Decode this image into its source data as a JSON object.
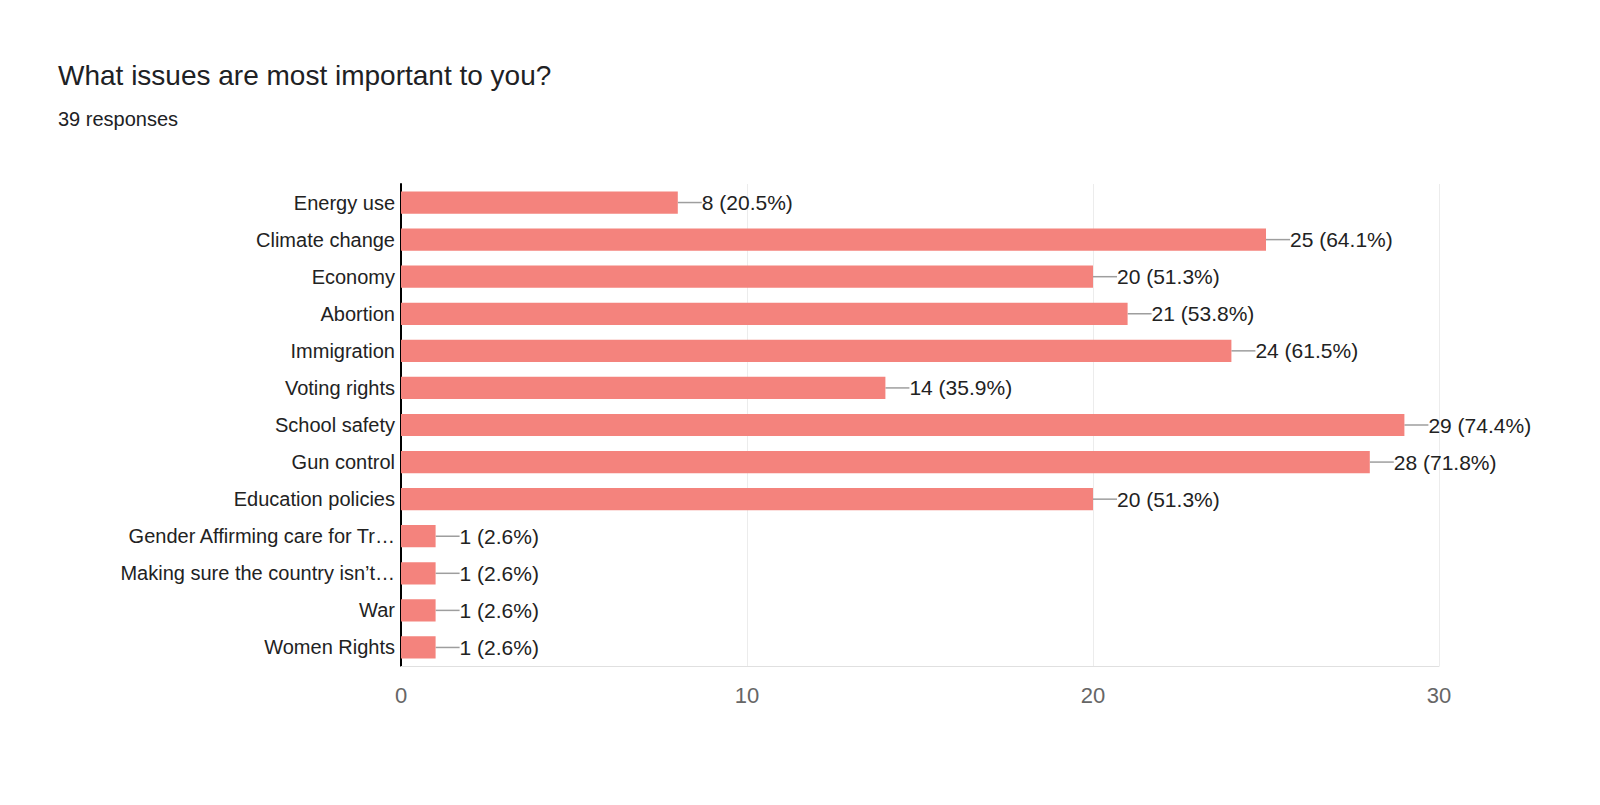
{
  "chart_data": {
    "type": "bar",
    "title": "What issues are most important to you?",
    "subtitle": "39 responses",
    "orientation": "horizontal",
    "categories": [
      "Energy use",
      "Climate change",
      "Economy",
      "Abortion",
      "Immigration",
      "Voting rights",
      "School safety",
      "Gun control",
      "Education policies",
      "Gender Affirming care for Tr…",
      "Making sure the country isn’t…",
      "War",
      "Women Rights"
    ],
    "values": [
      8,
      25,
      20,
      21,
      24,
      14,
      29,
      28,
      20,
      1,
      1,
      1,
      1
    ],
    "value_labels": [
      "8 (20.5%)",
      "25 (64.1%)",
      "20 (51.3%)",
      "21 (53.8%)",
      "24 (61.5%)",
      "14 (35.9%)",
      "29 (74.4%)",
      "28 (71.8%)",
      "20 (51.3%)",
      "1 (2.6%)",
      "1 (2.6%)",
      "1 (2.6%)",
      "1 (2.6%)"
    ],
    "color": "#f4837d",
    "xlim": [
      0,
      30
    ],
    "xticks": [
      0,
      10,
      20,
      30
    ],
    "grid": true,
    "data_labels": true
  }
}
